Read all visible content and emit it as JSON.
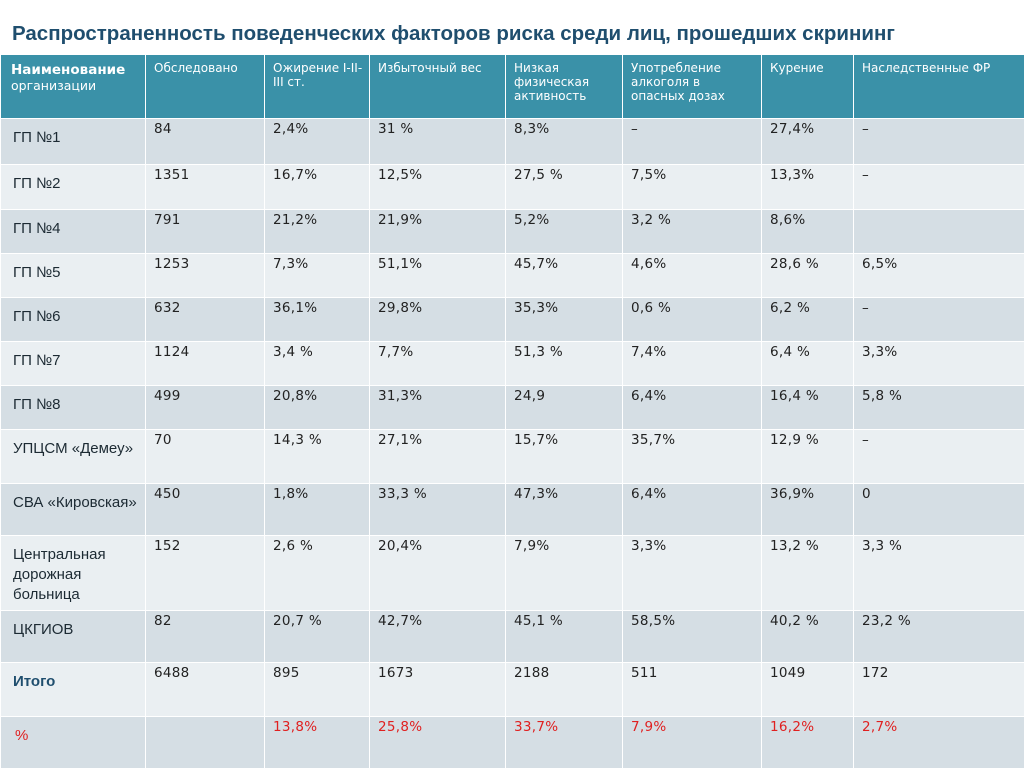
{
  "title": "Распространенность поведенческих факторов риска среди лиц, прошедших скрининг",
  "colors": {
    "header_bg": "#3a91a8",
    "row_odd": "#d5dee4",
    "row_even": "#eaeff2",
    "title": "#1f4e6e",
    "percent": "#e02020"
  },
  "table": {
    "headers": {
      "name_main": "Наименование",
      "name_sub": "организации",
      "examined": "Обследовано",
      "obesity": "Ожирение I-II-III ст.",
      "overweight": "Избыточный вес",
      "low_activity": "Низкая физическая активность",
      "alcohol": "Употребление алкоголя в опасных дозах",
      "smoking": "Курение",
      "hereditary": "Наследственные ФР"
    },
    "rows": [
      {
        "name": "ГП №1",
        "cells": [
          "84",
          "2,4%",
          "31 %",
          "8,3%",
          "–",
          "27,4%",
          "–"
        ]
      },
      {
        "name": "ГП №2",
        "cells": [
          "1351",
          "16,7%",
          "12,5%",
          "27,5 %",
          "7,5%",
          "13,3%",
          "–"
        ]
      },
      {
        "name": "ГП №4",
        "cells": [
          "791",
          "21,2%",
          "21,9%",
          "5,2%",
          "3,2 %",
          "8,6%",
          ""
        ]
      },
      {
        "name": "ГП №5",
        "cells": [
          "1253",
          "7,3%",
          "51,1%",
          "45,7%",
          "4,6%",
          "28,6 %",
          "6,5%"
        ]
      },
      {
        "name": "ГП №6",
        "cells": [
          "632",
          "36,1%",
          "29,8%",
          "35,3%",
          "0,6 %",
          "6,2 %",
          "–"
        ]
      },
      {
        "name": "ГП №7",
        "cells": [
          "1124",
          "3,4 %",
          "7,7%",
          "51,3 %",
          "7,4%",
          "6,4 %",
          "3,3%"
        ]
      },
      {
        "name": "ГП №8",
        "cells": [
          "499",
          "20,8%",
          "31,3%",
          "24,9",
          "6,4%",
          "16,4 %",
          "5,8 %"
        ]
      },
      {
        "name": "УПЦСМ «Демеу»",
        "cells": [
          "70",
          "14,3 %",
          "27,1%",
          "15,7%",
          "35,7%",
          "12,9 %",
          "–"
        ]
      },
      {
        "name": "СВА «Кировская»",
        "cells": [
          "450",
          "1,8%",
          "33,3 %",
          "47,3%",
          "6,4%",
          "36,9%",
          "0"
        ]
      },
      {
        "name": "Центральная дорожная больница",
        "cells": [
          "152",
          "2,6 %",
          "20,4%",
          "7,9%",
          "3,3%",
          "13,2 %",
          "3,3 %"
        ]
      },
      {
        "name": "ЦКГИОВ",
        "cells": [
          "82",
          "20,7 %",
          "42,7%",
          "45,1 %",
          " 58,5%",
          "40,2 %",
          "23,2 %"
        ]
      }
    ],
    "total": {
      "name": "Итого",
      "cells": [
        "6488",
        "895",
        "1673",
        "2188",
        "511",
        "1049",
        "172"
      ]
    },
    "percent": {
      "name": "%",
      "cells": [
        "",
        "13,8%",
        "25,8%",
        "33,7%",
        "7,9%",
        "16,2%",
        "2,7%"
      ]
    }
  }
}
